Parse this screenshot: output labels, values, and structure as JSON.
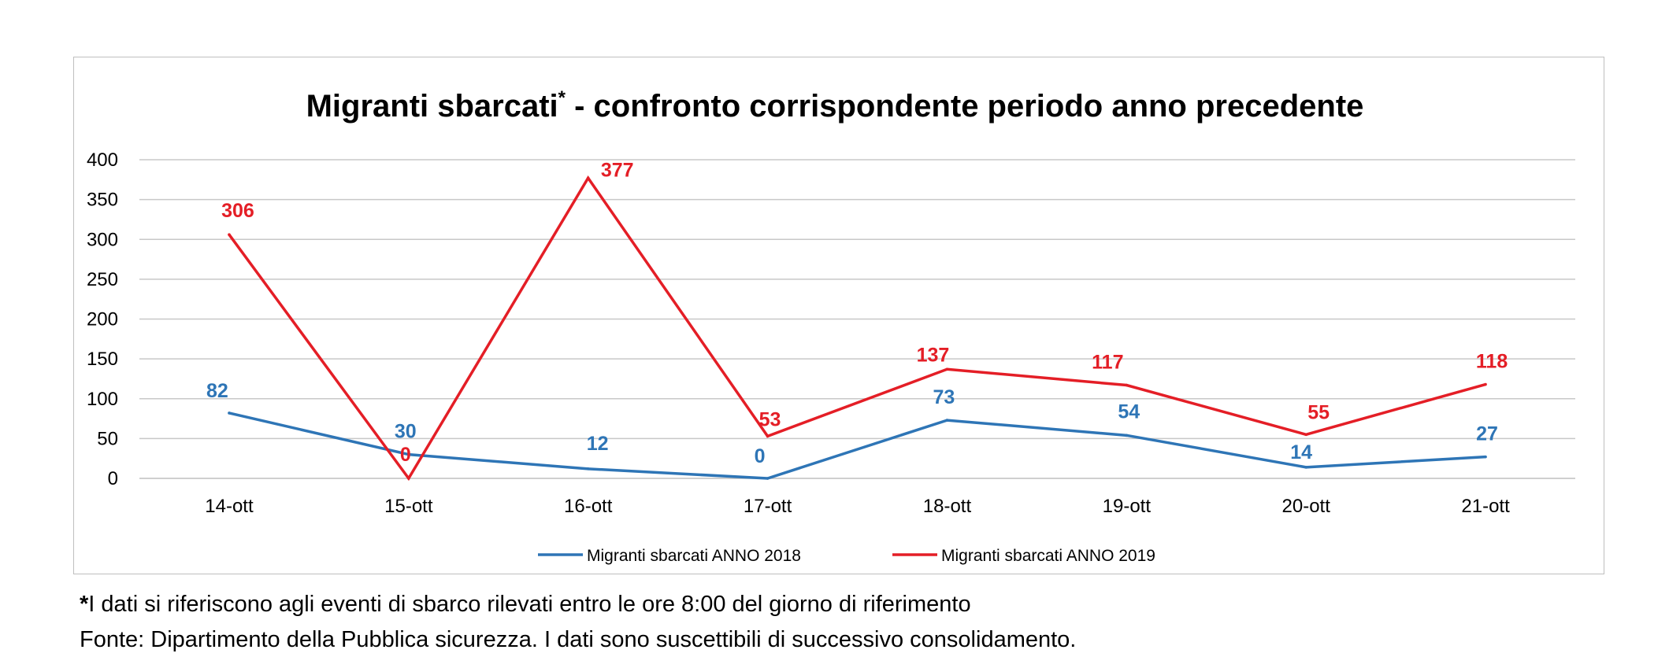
{
  "chart_data": {
    "type": "line",
    "title": "Migranti sbarcati",
    "title_mark": "*",
    "title_rest": " - confronto corrispondente periodo anno precedente",
    "categories": [
      "14-ott",
      "15-ott",
      "16-ott",
      "17-ott",
      "18-ott",
      "19-ott",
      "20-ott",
      "21-ott"
    ],
    "series": [
      {
        "name": "Migranti sbarcati ANNO 2018",
        "color": "#2e75b6",
        "values": [
          82,
          30,
          12,
          0,
          73,
          54,
          14,
          27
        ]
      },
      {
        "name": "Migranti sbarcati ANNO 2019",
        "color": "#e41e26",
        "values": [
          306,
          0,
          377,
          53,
          137,
          117,
          55,
          118
        ]
      }
    ],
    "ylim": [
      0,
      400
    ],
    "yticks": [
      0,
      50,
      100,
      150,
      200,
      250,
      300,
      350,
      400
    ],
    "grid": true,
    "legend_position": "bottom",
    "data_labels": true
  },
  "footnotes": {
    "line1_mark": "*",
    "line1": "I dati si riferiscono agli eventi di sbarco rilevati entro le ore 8:00 del giorno di riferimento",
    "line2": "Fonte: Dipartimento della Pubblica sicurezza. I dati sono suscettibili di successivo consolidamento."
  }
}
